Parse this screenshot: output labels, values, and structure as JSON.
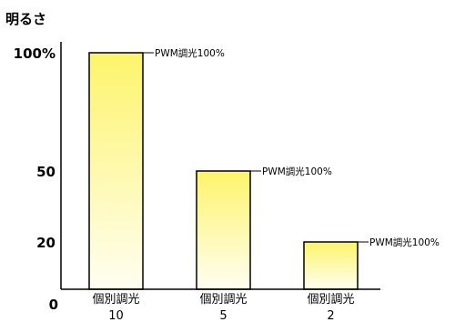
{
  "chart_data": {
    "type": "bar",
    "ylabel": "明るさ",
    "categories": [
      {
        "line1": "個別調光",
        "line2": "10"
      },
      {
        "line1": "個別調光",
        "line2": "5"
      },
      {
        "line1": "個別調光",
        "line2": "2"
      }
    ],
    "values": [
      100,
      50,
      20
    ],
    "y_ticks": [
      {
        "value": 0,
        "label": "0"
      },
      {
        "value": 20,
        "label": "20"
      },
      {
        "value": 50,
        "label": "50"
      },
      {
        "value": 100,
        "label": "100%"
      }
    ],
    "annotations": [
      "PWM調光100%",
      "PWM調光100%",
      "PWM調光100%"
    ],
    "ylim": [
      0,
      100
    ],
    "grid": false,
    "colors": {
      "bar_top": "#fdf46b",
      "bar_bottom": "#fffef2",
      "bar_stroke": "#000000",
      "axis": "#000000"
    }
  }
}
